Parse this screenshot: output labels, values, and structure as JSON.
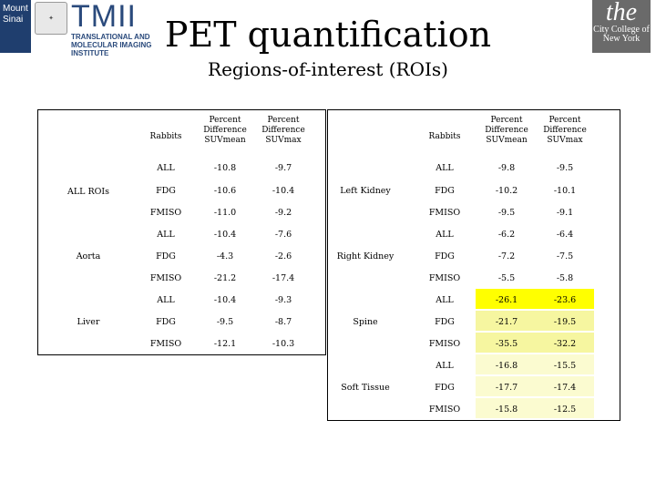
{
  "logos": {
    "mount_sinai": "Mount Sinai",
    "tmii": "TMII",
    "tmii_full": "TRANSLATIONAL AND MOLECULAR IMAGING INSTITUTE",
    "ccny_the": "the",
    "ccny_name": "City College of New York"
  },
  "title": "PET quantification",
  "subtitle": "Regions-of-interest (ROIs)",
  "left_table": {
    "headers": [
      "Rabbits",
      "Percent Difference SUVmean",
      "Percent Difference SUVmax"
    ],
    "groups": [
      {
        "name": "ALL ROIs",
        "rows": [
          [
            "ALL",
            "-10.8",
            "-9.7"
          ],
          [
            "FDG",
            "-10.6",
            "-10.4"
          ],
          [
            "FMISO",
            "-11.0",
            "-9.2"
          ]
        ]
      },
      {
        "name": "Aorta",
        "rows": [
          [
            "ALL",
            "-10.4",
            "-7.6"
          ],
          [
            "FDG",
            "-4.3",
            "-2.6"
          ],
          [
            "FMISO",
            "-21.2",
            "-17.4"
          ]
        ]
      },
      {
        "name": "Liver",
        "rows": [
          [
            "ALL",
            "-10.4",
            "-9.3"
          ],
          [
            "FDG",
            "-9.5",
            "-8.7"
          ],
          [
            "FMISO",
            "-12.1",
            "-10.3"
          ]
        ]
      }
    ]
  },
  "right_table": {
    "headers": [
      "Rabbits",
      "Percent Difference SUVmean",
      "Percent Difference SUVmax"
    ],
    "groups": [
      {
        "name": "Left Kidney",
        "rows": [
          [
            "ALL",
            "-9.8",
            "-9.5"
          ],
          [
            "FDG",
            "-10.2",
            "-10.1"
          ],
          [
            "FMISO",
            "-9.5",
            "-9.1"
          ]
        ]
      },
      {
        "name": "Right Kidney",
        "rows": [
          [
            "ALL",
            "-6.2",
            "-6.4"
          ],
          [
            "FDG",
            "-7.2",
            "-7.5"
          ],
          [
            "FMISO",
            "-5.5",
            "-5.8"
          ]
        ]
      },
      {
        "name": "Spine",
        "rows": [
          [
            "ALL",
            "-26.1",
            "-23.6"
          ],
          [
            "FDG",
            "-21.7",
            "-19.5"
          ],
          [
            "FMISO",
            "-35.5",
            "-32.2"
          ]
        ]
      },
      {
        "name": "Soft Tissue",
        "rows": [
          [
            "ALL",
            "-16.8",
            "-15.5"
          ],
          [
            "FDG",
            "-17.7",
            "-17.4"
          ],
          [
            "FMISO",
            "-15.8",
            "-12.5"
          ]
        ]
      }
    ]
  },
  "colors": {
    "highlight_strong": "#ffff00",
    "highlight_medium": "#f6f6a0",
    "highlight_light": "#fbfbd0"
  }
}
